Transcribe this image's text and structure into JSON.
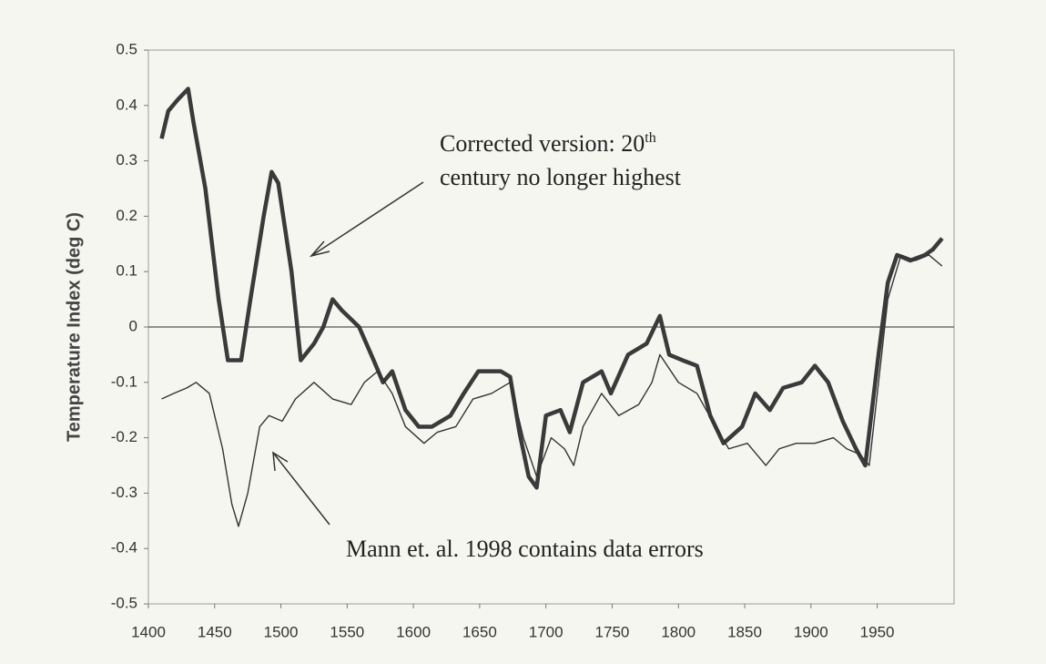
{
  "chart_data": {
    "type": "line",
    "y_label": "Temperature Index (deg C)",
    "xlim": [
      1400,
      2008
    ],
    "xticks": [
      1400,
      1450,
      1500,
      1550,
      1600,
      1650,
      1700,
      1750,
      1800,
      1850,
      1900,
      1950
    ],
    "ylim": [
      -0.5,
      0.5
    ],
    "yticks": [
      0.5,
      0.4,
      0.3,
      0.2,
      0.1,
      0,
      -0.1,
      -0.2,
      -0.3,
      -0.4,
      -0.5
    ],
    "grid": false,
    "series": [
      {
        "color": "#3a3a3a",
        "x": [
          1410,
          1415,
          1422,
          1430,
          1434,
          1443,
          1453,
          1460,
          1470,
          1477,
          1487,
          1493,
          1498,
          1508,
          1515,
          1525,
          1532,
          1539,
          1546,
          1559,
          1570,
          1577,
          1584,
          1594,
          1604,
          1614,
          1628,
          1638,
          1649,
          1666,
          1673,
          1680,
          1687,
          1693,
          1700,
          1711,
          1718,
          1728,
          1742,
          1749,
          1762,
          1776,
          1786,
          1793,
          1803,
          1814,
          1824,
          1834,
          1848,
          1858,
          1869,
          1879,
          1893,
          1903,
          1913,
          1924,
          1934,
          1941,
          1951,
          1958,
          1965,
          1975,
          1986,
          1992,
          1999
        ],
        "values": [
          0.34,
          0.39,
          0.41,
          0.43,
          0.37,
          0.25,
          0.05,
          -0.06,
          -0.06,
          0.05,
          0.2,
          0.28,
          0.26,
          0.1,
          -0.06,
          -0.03,
          0.0,
          0.05,
          0.03,
          0.0,
          -0.06,
          -0.1,
          -0.08,
          -0.15,
          -0.18,
          -0.18,
          -0.16,
          -0.12,
          -0.08,
          -0.08,
          -0.09,
          -0.19,
          -0.27,
          -0.29,
          -0.16,
          -0.15,
          -0.19,
          -0.1,
          -0.08,
          -0.12,
          -0.05,
          -0.03,
          0.02,
          -0.05,
          -0.06,
          -0.07,
          -0.16,
          -0.21,
          -0.18,
          -0.12,
          -0.15,
          -0.11,
          -0.1,
          -0.07,
          -0.1,
          -0.17,
          -0.22,
          -0.25,
          -0.05,
          0.08,
          0.13,
          0.12,
          0.13,
          0.14,
          0.16
        ]
      },
      {
        "color": "#333333",
        "x": [
          1410,
          1419,
          1429,
          1436,
          1446,
          1456,
          1463,
          1468,
          1475,
          1484,
          1491,
          1501,
          1511,
          1525,
          1539,
          1553,
          1563,
          1573,
          1584,
          1594,
          1608,
          1618,
          1632,
          1645,
          1659,
          1673,
          1683,
          1693,
          1704,
          1714,
          1721,
          1728,
          1742,
          1755,
          1770,
          1780,
          1786,
          1800,
          1814,
          1828,
          1838,
          1852,
          1866,
          1876,
          1889,
          1903,
          1917,
          1927,
          1937,
          1944,
          1951,
          1958,
          1968,
          1979,
          1989,
          1999
        ],
        "values": [
          -0.13,
          -0.12,
          -0.11,
          -0.1,
          -0.12,
          -0.22,
          -0.32,
          -0.36,
          -0.3,
          -0.18,
          -0.16,
          -0.17,
          -0.13,
          -0.1,
          -0.13,
          -0.14,
          -0.1,
          -0.08,
          -0.12,
          -0.18,
          -0.21,
          -0.19,
          -0.18,
          -0.13,
          -0.12,
          -0.1,
          -0.2,
          -0.27,
          -0.2,
          -0.22,
          -0.25,
          -0.18,
          -0.12,
          -0.16,
          -0.14,
          -0.1,
          -0.05,
          -0.1,
          -0.12,
          -0.18,
          -0.22,
          -0.21,
          -0.25,
          -0.22,
          -0.21,
          -0.21,
          -0.2,
          -0.22,
          -0.23,
          -0.25,
          -0.1,
          0.05,
          0.13,
          0.12,
          0.13,
          0.11
        ]
      }
    ],
    "annotations": [
      {
        "lines": [
          "Corrected version: 20",
          "century no longer highest"
        ],
        "superscript": "th"
      },
      {
        "lines": [
          "Mann et. al. 1998 contains data errors"
        ]
      }
    ]
  }
}
